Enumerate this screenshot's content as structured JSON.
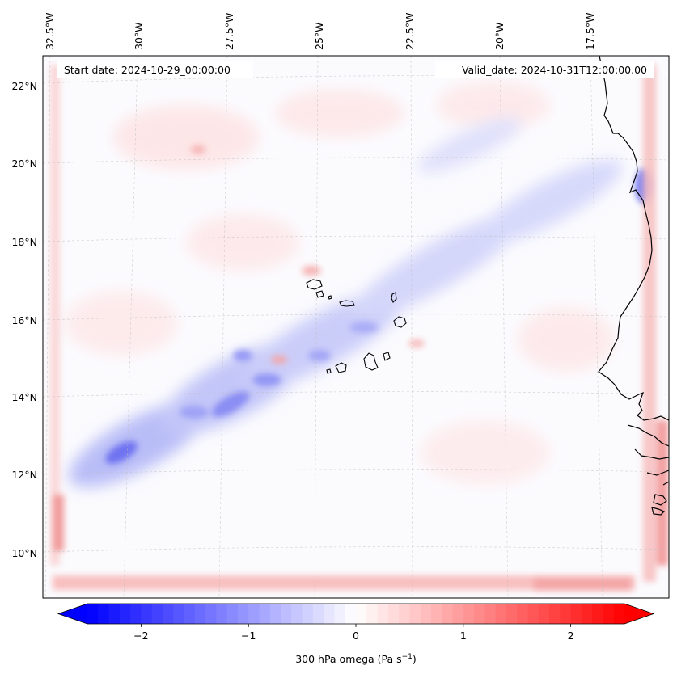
{
  "map": {
    "start_date_label": "Start date: 2024-10-29_00:00:00",
    "valid_date_label": "Valid_date: 2024-10-31T12:00:00.00",
    "lon_ticks": [
      "32.5°W",
      "30°W",
      "27.5°W",
      "25°W",
      "22.5°W",
      "20°W",
      "17.5°W"
    ],
    "lat_ticks": [
      "22°N",
      "20°N",
      "18°N",
      "16°N",
      "14°N",
      "12°N",
      "10°N"
    ],
    "extent": {
      "lon_min": -33.0,
      "lon_max": -15.3,
      "lat_min": 8.9,
      "lat_max": 22.8
    },
    "gridline_style": "dashed light grey",
    "features": [
      "coastline West Africa",
      "Cape Verde islands"
    ]
  },
  "colorbar": {
    "label_prefix": "300 hPa omega (Pa s",
    "label_exponent": "−1",
    "label_suffix": ")",
    "tick_labels": [
      "−2",
      "−1",
      "0",
      "1",
      "2"
    ],
    "tick_values": [
      -2,
      -1,
      0,
      1,
      2
    ],
    "range": [
      -2.5,
      2.5
    ],
    "extend": "both",
    "cmap": "bwr",
    "neg_color": "#0000ff",
    "mid_color": "#ffffff",
    "pos_color": "#ff0000"
  }
}
